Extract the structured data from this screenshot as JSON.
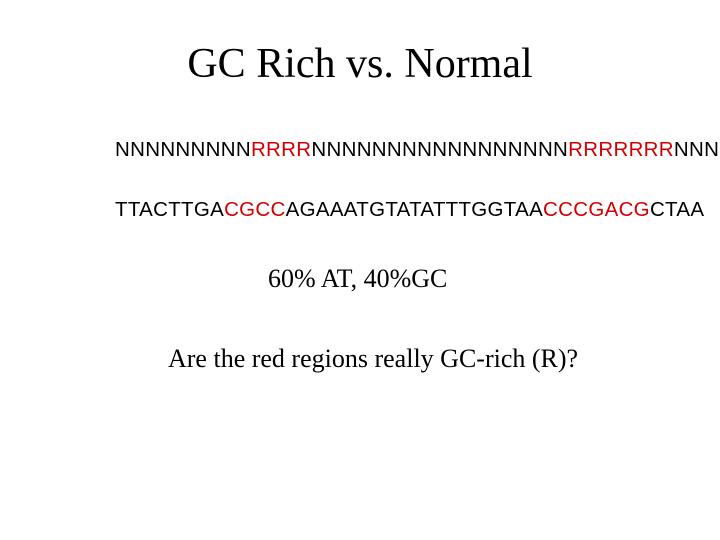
{
  "title": "GC Rich vs. Normal",
  "seq1": {
    "parts": [
      {
        "text": "NNNNNNNNN",
        "color": "black"
      },
      {
        "text": "RRRR",
        "color": "red"
      },
      {
        "text": "NNNNNNNNNNNNNNNNN",
        "color": "black"
      },
      {
        "text": "RRRRRRR",
        "color": "red"
      },
      {
        "text": "NNNN",
        "color": "black"
      }
    ]
  },
  "seq2": {
    "parts": [
      {
        "text": "TTACTTGA",
        "color": "black"
      },
      {
        "text": "CGCC",
        "color": "red"
      },
      {
        "text": "AGAAATGTATATTTGGTAA",
        "color": "black"
      },
      {
        "text": "CCCGACG",
        "color": "red"
      },
      {
        "text": "CTAA",
        "color": "black"
      }
    ]
  },
  "percent_text": "60% AT, 40%GC",
  "question_text": "Are the red regions really GC-rich (R)?",
  "colors": {
    "red": "#d20000",
    "black": "#000000",
    "background": "#ffffff"
  },
  "fonts": {
    "title_size": 42,
    "seq_size": 20.5,
    "body_size": 26,
    "title_family": "Times New Roman",
    "seq_family": "Arial"
  }
}
